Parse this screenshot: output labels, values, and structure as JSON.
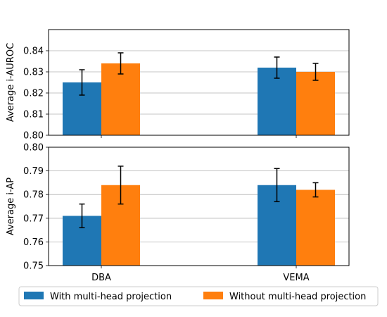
{
  "chart_data": [
    {
      "type": "bar",
      "categories": [
        "DBA",
        "VEMA"
      ],
      "ylabel": "Average i-AUROC",
      "ylim": [
        0.8,
        0.85
      ],
      "yticks": [
        "0.80",
        "0.81",
        "0.82",
        "0.83",
        "0.84"
      ],
      "grid": "horizontal",
      "series": [
        {
          "name": "With multi-head projection",
          "values": [
            0.825,
            0.832
          ],
          "errors": [
            0.006,
            0.005
          ]
        },
        {
          "name": "Without multi-head projection",
          "values": [
            0.834,
            0.83
          ],
          "errors": [
            0.005,
            0.004
          ]
        }
      ]
    },
    {
      "type": "bar",
      "categories": [
        "DBA",
        "VEMA"
      ],
      "ylabel": "Average i-AP",
      "ylim": [
        0.75,
        0.8
      ],
      "yticks": [
        "0.75",
        "0.76",
        "0.77",
        "0.78",
        "0.79",
        "0.80"
      ],
      "grid": "horizontal",
      "series": [
        {
          "name": "With multi-head projection",
          "values": [
            0.771,
            0.784
          ],
          "errors": [
            0.005,
            0.007
          ]
        },
        {
          "name": "Without multi-head projection",
          "values": [
            0.784,
            0.782
          ],
          "errors": [
            0.008,
            0.003
          ]
        }
      ]
    }
  ],
  "legend": {
    "placement": "bottom",
    "entries": [
      "With multi-head projection",
      "Without multi-head projection"
    ]
  },
  "colors": {
    "series_1": "#1f77b4",
    "series_2": "#ff7f0e",
    "grid": "#b0b0b0"
  }
}
